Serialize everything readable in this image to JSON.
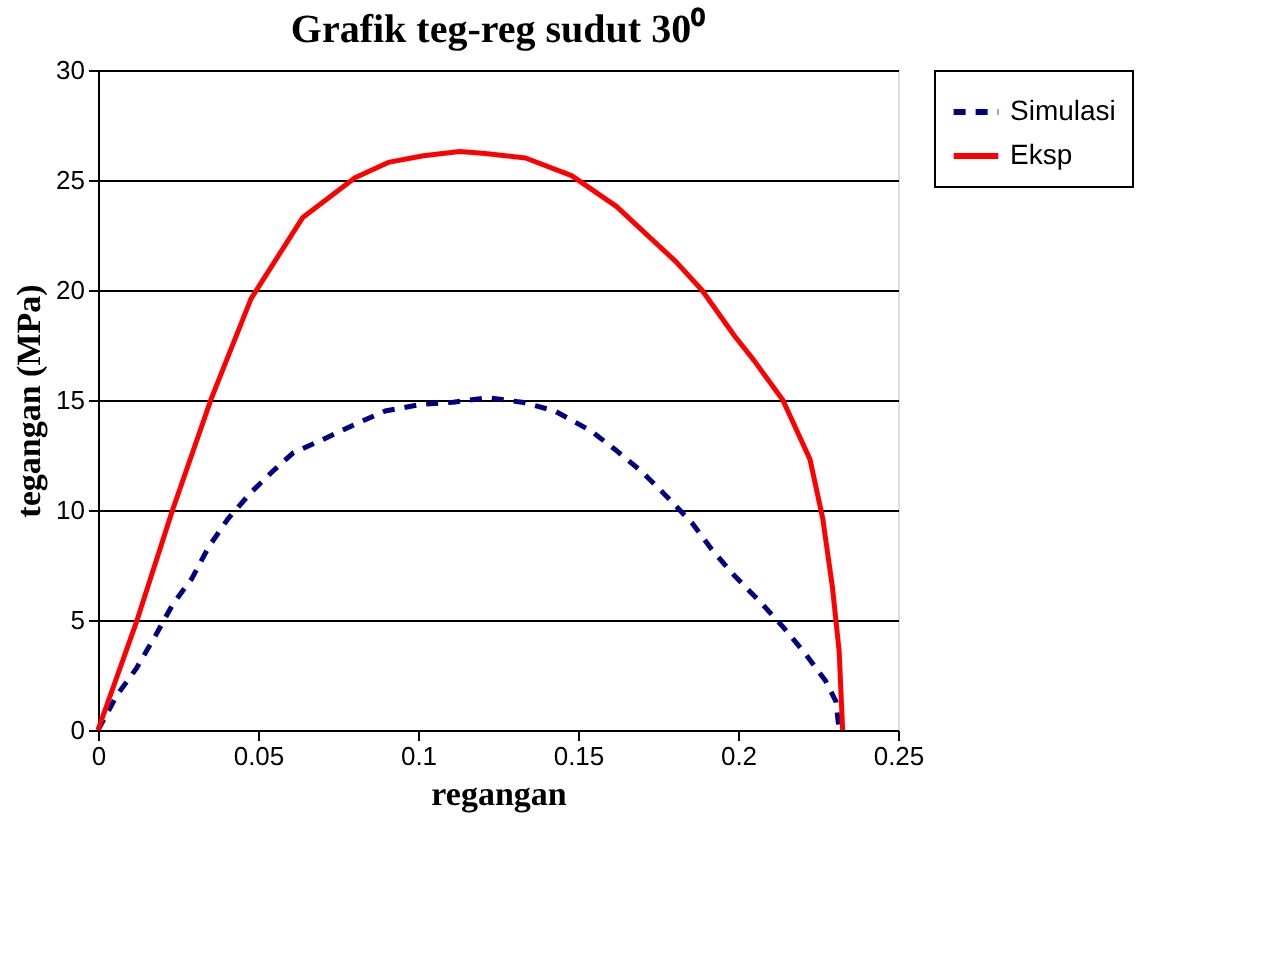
{
  "chart_data": {
    "type": "line",
    "title": "Grafik teg-reg sudut 30⁰",
    "xlabel": "regangan",
    "ylabel": "tegangan (MPa)",
    "xlim": [
      0,
      0.25
    ],
    "xticks": [
      0,
      0.05,
      0.1,
      0.15,
      0.2,
      0.25
    ],
    "ylim": [
      0,
      30
    ],
    "yticks": [
      0,
      5,
      10,
      15,
      20,
      25,
      30
    ],
    "grid": "y",
    "legend": "right",
    "marker": "none",
    "series": [
      {
        "name": "Simulasi",
        "color": "#000080",
        "line_style": "dashed",
        "x": [
          0,
          0.006,
          0.012,
          0.018,
          0.0233,
          0.0294,
          0.0345,
          0.0406,
          0.0478,
          0.0549,
          0.061,
          0.0702,
          0.0804,
          0.0897,
          0.1009,
          0.111,
          0.1219,
          0.1325,
          0.1428,
          0.154,
          0.162,
          0.1703,
          0.1785,
          0.1857,
          0.1918,
          0.199,
          0.2071,
          0.214,
          0.2214,
          0.2275,
          0.2306,
          0.2316
        ],
        "values": [
          0,
          1.6,
          2.8,
          4.3,
          5.7,
          6.9,
          8.3,
          9.6,
          10.8,
          11.8,
          12.6,
          13.2,
          13.9,
          14.5,
          14.8,
          14.9,
          15.1,
          14.9,
          14.5,
          13.6,
          12.7,
          11.7,
          10.5,
          9.4,
          8.2,
          7.0,
          5.8,
          4.7,
          3.4,
          2.2,
          1.3,
          0
        ]
      },
      {
        "name": "Eksp",
        "color": "#ff0000",
        "line_style": "solid",
        "x": [
          0,
          0.012,
          0.0233,
          0.0355,
          0.0478,
          0.064,
          0.0803,
          0.0907,
          0.1017,
          0.113,
          0.121,
          0.1336,
          0.148,
          0.162,
          0.1805,
          0.1887,
          0.199,
          0.205,
          0.214,
          0.2225,
          0.2265,
          0.2295,
          0.2316,
          0.2327
        ],
        "values": [
          0,
          4.9,
          10,
          15.1,
          19.6,
          23.3,
          25.1,
          25.8,
          26.1,
          26.3,
          26.2,
          26.0,
          25.2,
          23.8,
          21.3,
          20.0,
          17.9,
          16.8,
          15.0,
          12.3,
          9.6,
          6.5,
          3.6,
          0
        ]
      }
    ]
  }
}
